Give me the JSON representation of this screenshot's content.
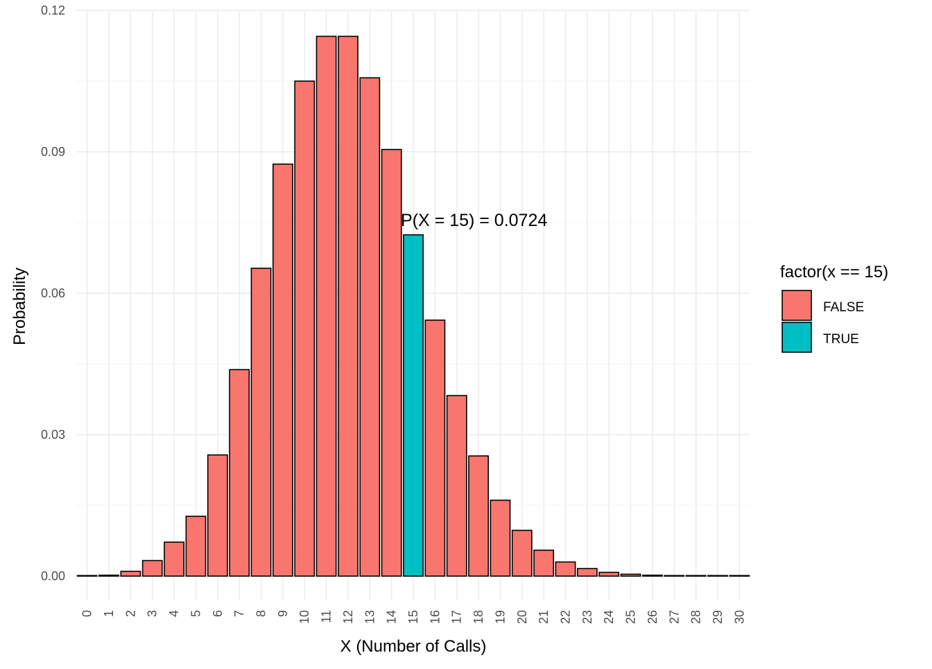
{
  "chart_data": {
    "type": "bar",
    "title": "",
    "xlabel": "X (Number of Calls)",
    "ylabel": "Probability",
    "categories": [
      "0",
      "1",
      "2",
      "3",
      "4",
      "5",
      "6",
      "7",
      "8",
      "9",
      "10",
      "11",
      "12",
      "13",
      "14",
      "15",
      "16",
      "17",
      "18",
      "19",
      "20",
      "21",
      "22",
      "23",
      "24",
      "25",
      "26",
      "27",
      "28",
      "29",
      "30"
    ],
    "values": [
      2e-05,
      0.0002,
      0.001,
      0.0033,
      0.0072,
      0.0127,
      0.0257,
      0.0438,
      0.0653,
      0.0874,
      0.105,
      0.1145,
      0.1145,
      0.1057,
      0.0905,
      0.0724,
      0.0543,
      0.0383,
      0.0255,
      0.0161,
      0.0097,
      0.0055,
      0.003,
      0.0016,
      0.0008,
      0.0004,
      0.0002,
      9e-05,
      4e-05,
      2e-05,
      1e-05
    ],
    "highlight_flags": [
      false,
      false,
      false,
      false,
      false,
      false,
      false,
      false,
      false,
      false,
      false,
      false,
      false,
      false,
      false,
      true,
      false,
      false,
      false,
      false,
      false,
      false,
      false,
      false,
      false,
      false,
      false,
      false,
      false,
      false,
      false
    ],
    "ylim": [
      -0.005,
      0.12
    ],
    "yticks": [
      0.0,
      0.03,
      0.06,
      0.09,
      0.12
    ],
    "ytick_labels": [
      "0.00",
      "0.03",
      "0.06",
      "0.09",
      "0.12"
    ],
    "grid": true,
    "legend": {
      "title": "factor(x == 15)",
      "position": "right",
      "entries": [
        {
          "label": "FALSE",
          "color": "#F8766D"
        },
        {
          "label": "TRUE",
          "color": "#00BFC4"
        }
      ]
    },
    "annotation": {
      "text": "P(X = 15) = 0.0724",
      "x": 15,
      "y": 0.076
    },
    "colors": {
      "false": "#F8766D",
      "true": "#00BFC4",
      "outline": "#000000"
    }
  }
}
